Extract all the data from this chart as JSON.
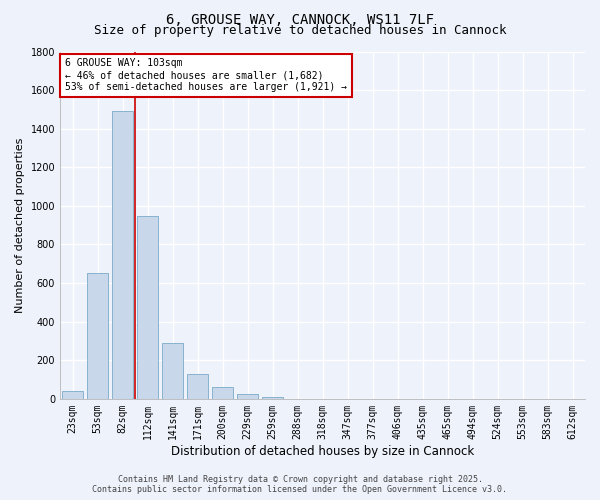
{
  "title": "6, GROUSE WAY, CANNOCK, WS11 7LF",
  "subtitle": "Size of property relative to detached houses in Cannock",
  "xlabel": "Distribution of detached houses by size in Cannock",
  "ylabel": "Number of detached properties",
  "categories": [
    "23sqm",
    "53sqm",
    "82sqm",
    "112sqm",
    "141sqm",
    "171sqm",
    "200sqm",
    "229sqm",
    "259sqm",
    "288sqm",
    "318sqm",
    "347sqm",
    "377sqm",
    "406sqm",
    "435sqm",
    "465sqm",
    "494sqm",
    "524sqm",
    "553sqm",
    "583sqm",
    "612sqm"
  ],
  "values": [
    40,
    650,
    1490,
    950,
    290,
    130,
    60,
    25,
    10,
    0,
    0,
    0,
    0,
    0,
    0,
    0,
    0,
    0,
    0,
    0,
    0
  ],
  "bar_color": "#c8d8ea",
  "bar_edge_color": "#7aaac8",
  "annotation_text": "6 GROUSE WAY: 103sqm\n← 46% of detached houses are smaller (1,682)\n53% of semi-detached houses are larger (1,921) →",
  "annotation_box_color": "#ffffff",
  "annotation_box_edge": "#cc0000",
  "vline_color": "#cc0000",
  "vline_x_index": 2.5,
  "ylim": [
    0,
    1800
  ],
  "yticks": [
    0,
    200,
    400,
    600,
    800,
    1000,
    1200,
    1400,
    1600,
    1800
  ],
  "bg_color": "#eef2fb",
  "grid_color": "#ffffff",
  "footer_line1": "Contains HM Land Registry data © Crown copyright and database right 2025.",
  "footer_line2": "Contains public sector information licensed under the Open Government Licence v3.0.",
  "title_fontsize": 10,
  "subtitle_fontsize": 9,
  "xlabel_fontsize": 8.5,
  "ylabel_fontsize": 8,
  "tick_fontsize": 7,
  "footer_fontsize": 6,
  "annot_fontsize": 7
}
